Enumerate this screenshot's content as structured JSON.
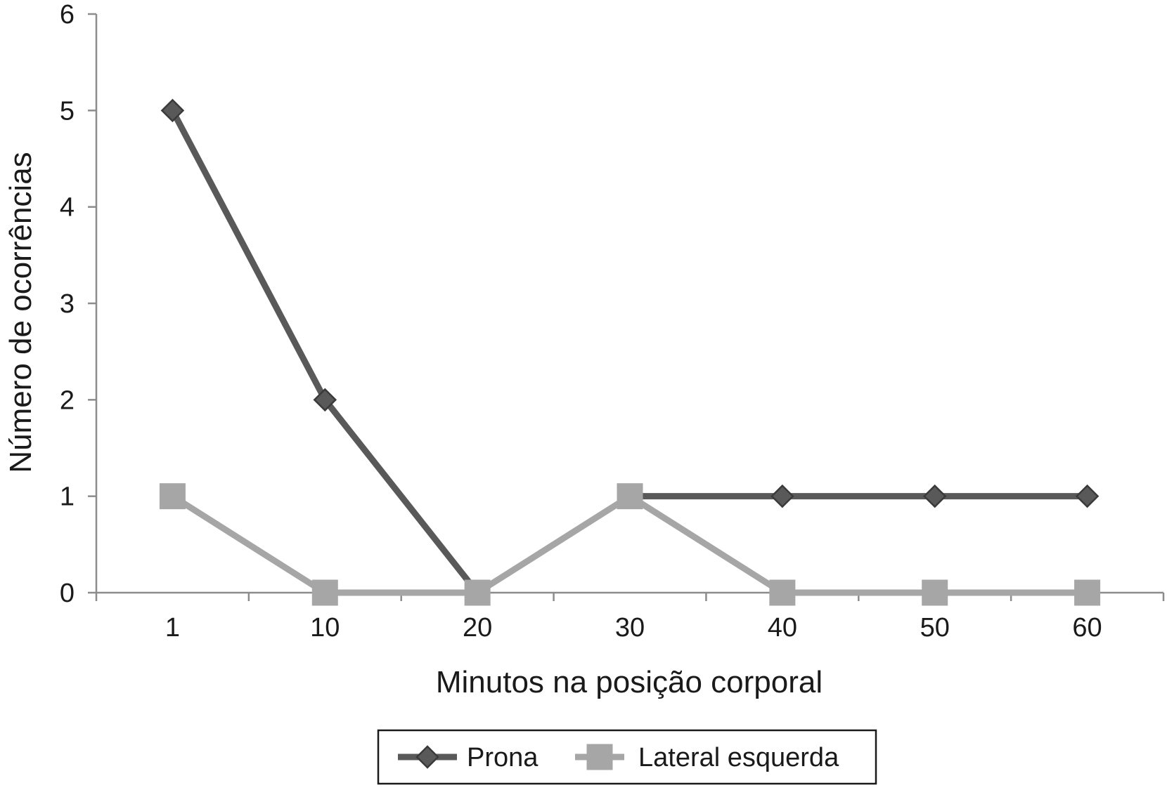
{
  "chart_data": {
    "type": "line",
    "title": "",
    "xlabel": "Minutos na posição corporal",
    "ylabel": "Número de ocorrências",
    "categories": [
      "1",
      "10",
      "20",
      "30",
      "40",
      "50",
      "60"
    ],
    "yticks": [
      "0",
      "1",
      "2",
      "3",
      "4",
      "5",
      "6"
    ],
    "ylim": [
      0,
      6
    ],
    "grid": false,
    "legend_position": "bottom",
    "series": [
      {
        "name": "Prona",
        "values": [
          5,
          2,
          0,
          null,
          1,
          1,
          1
        ],
        "color": "#595959",
        "marker": "diamond"
      },
      {
        "name": "Lateral esquerda",
        "values": [
          1,
          0,
          0,
          1,
          0,
          0,
          0
        ],
        "color": "#a6a6a6",
        "marker": "square"
      }
    ]
  }
}
